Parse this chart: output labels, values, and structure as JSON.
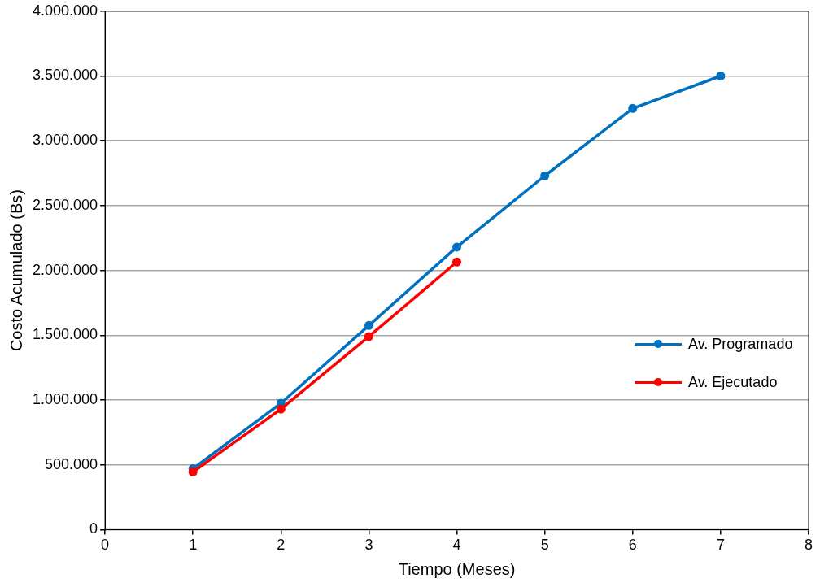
{
  "chart_data": {
    "type": "line",
    "xlabel": "Tiempo (Meses)",
    "ylabel": "Costo Acumulado (Bs)",
    "x": [
      1,
      2,
      3,
      4,
      5,
      6,
      7
    ],
    "series": [
      {
        "name": "Av. Programado",
        "color": "#0070c0",
        "values": [
          470000,
          975000,
          1575000,
          2180000,
          2730000,
          3250000,
          3500000
        ]
      },
      {
        "name": "Av. Ejecutado",
        "color": "#ff0000",
        "values": [
          445000,
          930000,
          1490000,
          2065000,
          null,
          null,
          null
        ]
      }
    ],
    "xlim": [
      0,
      8
    ],
    "xticks": [
      0,
      1,
      2,
      3,
      4,
      5,
      6,
      7,
      8
    ],
    "ylim": [
      0,
      4000000
    ],
    "yticks": [
      {
        "value": 0,
        "label": "0"
      },
      {
        "value": 500000,
        "label": "500.000"
      },
      {
        "value": 1000000,
        "label": "1.000.000"
      },
      {
        "value": 1500000,
        "label": "1.500.000"
      },
      {
        "value": 2000000,
        "label": "2.000.000"
      },
      {
        "value": 2500000,
        "label": "2.500.000"
      },
      {
        "value": 3000000,
        "label": "3.000.000"
      },
      {
        "value": 3500000,
        "label": "3.500.000"
      },
      {
        "value": 4000000,
        "label": "4.000.000"
      }
    ],
    "grid": "y",
    "legend": "right",
    "marker": "circle",
    "line_style": "solid"
  }
}
